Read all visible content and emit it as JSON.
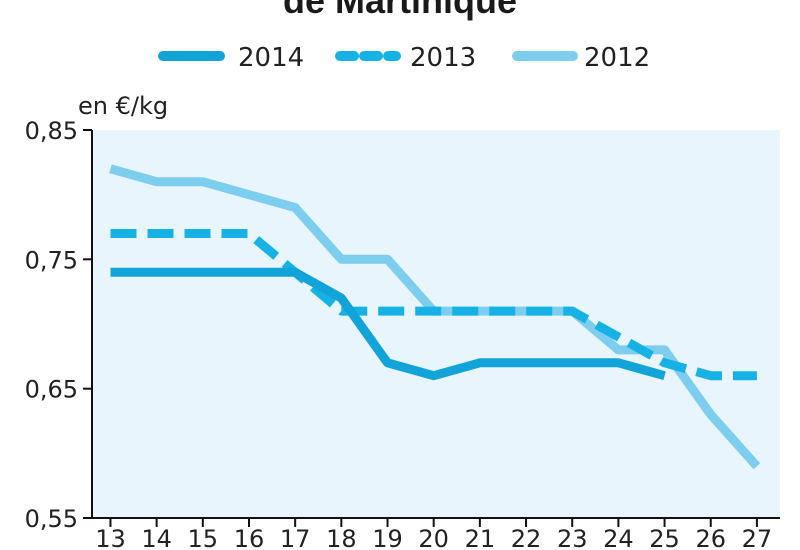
{
  "chart_data": {
    "type": "line",
    "title": "de Martinique",
    "ylabel": "en €/kg",
    "xlabel": "",
    "x": [
      13,
      14,
      15,
      16,
      17,
      18,
      19,
      20,
      21,
      22,
      23,
      24,
      25,
      26,
      27
    ],
    "x_tick_labels": [
      "13",
      "14",
      "15",
      "16",
      "17",
      "18",
      "19",
      "20",
      "21",
      "22",
      "23",
      "24",
      "25",
      "26",
      "27"
    ],
    "ylim": [
      0.55,
      0.85
    ],
    "y_ticks": [
      0.55,
      0.65,
      0.75,
      0.85
    ],
    "y_tick_labels": [
      "0,55",
      "0,65",
      "0,75",
      "0,85"
    ],
    "grid": false,
    "legend_position": "top",
    "plot_background": "#e8f5fc",
    "series": [
      {
        "name": "2014",
        "style": "solid",
        "color": "#12a3d8",
        "x": [
          13,
          14,
          15,
          16,
          17,
          18,
          19,
          20,
          21,
          22,
          23,
          24,
          25
        ],
        "values": [
          0.74,
          0.74,
          0.74,
          0.74,
          0.74,
          0.72,
          0.67,
          0.66,
          0.67,
          0.67,
          0.67,
          0.67,
          0.66
        ]
      },
      {
        "name": "2013",
        "style": "dashed",
        "color": "#16b2e6",
        "x": [
          13,
          14,
          15,
          16,
          17,
          18,
          19,
          20,
          21,
          22,
          23,
          24,
          25,
          26,
          27
        ],
        "values": [
          0.77,
          0.77,
          0.77,
          0.77,
          0.74,
          0.71,
          0.71,
          0.71,
          0.71,
          0.71,
          0.71,
          0.69,
          0.67,
          0.66,
          0.66
        ]
      },
      {
        "name": "2012",
        "style": "solid",
        "color": "#7dcdee",
        "x": [
          13,
          14,
          15,
          16,
          17,
          18,
          19,
          20,
          21,
          22,
          23,
          24,
          25,
          26,
          27
        ],
        "values": [
          0.82,
          0.81,
          0.81,
          0.8,
          0.79,
          0.75,
          0.75,
          0.71,
          0.71,
          0.71,
          0.71,
          0.68,
          0.68,
          0.63,
          0.59
        ]
      }
    ]
  }
}
